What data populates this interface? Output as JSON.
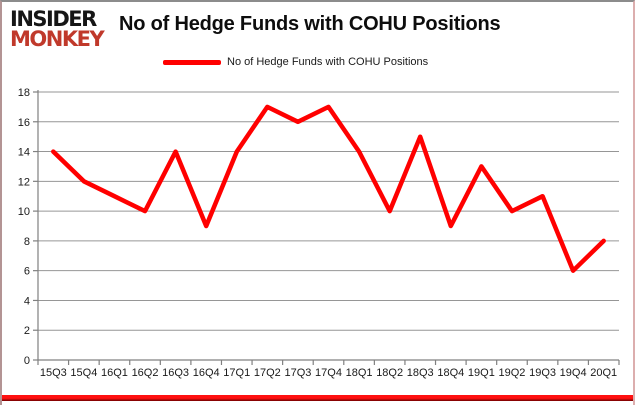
{
  "logo": {
    "line1": "INSIDER",
    "line2": "MONKEY"
  },
  "header": {
    "title": "No of Hedge Funds with COHU Positions"
  },
  "legend": {
    "label": "No of Hedge Funds with COHU Positions"
  },
  "colors": {
    "line": "#ff0000",
    "gridline": "#969696",
    "axis": "#808080",
    "tick_label": "#1a1a1a",
    "logo_black": "#161616",
    "logo_red": "#c0392b",
    "bottom_bar_red": "#ff0000"
  },
  "chart_data": {
    "type": "line",
    "title": "No of Hedge Funds with COHU Positions",
    "categories": [
      "15Q3",
      "15Q4",
      "16Q1",
      "16Q2",
      "16Q3",
      "16Q4",
      "17Q1",
      "17Q2",
      "17Q3",
      "17Q4",
      "18Q1",
      "18Q2",
      "18Q3",
      "18Q4",
      "19Q1",
      "19Q2",
      "19Q3",
      "19Q4",
      "20Q1"
    ],
    "series": [
      {
        "name": "No of Hedge Funds with COHU Positions",
        "color": "#ff0000",
        "values": [
          14,
          12,
          11,
          10,
          14,
          9,
          14,
          17,
          16,
          17,
          14,
          10,
          15,
          9,
          13,
          10,
          11,
          6,
          8
        ]
      }
    ],
    "xlabel": "",
    "ylabel": "",
    "ylim": [
      0,
      18
    ],
    "y_ticks": [
      0,
      2,
      4,
      6,
      8,
      10,
      12,
      14,
      16,
      18
    ],
    "grid": "horizontal",
    "legend_position": "top-center"
  }
}
